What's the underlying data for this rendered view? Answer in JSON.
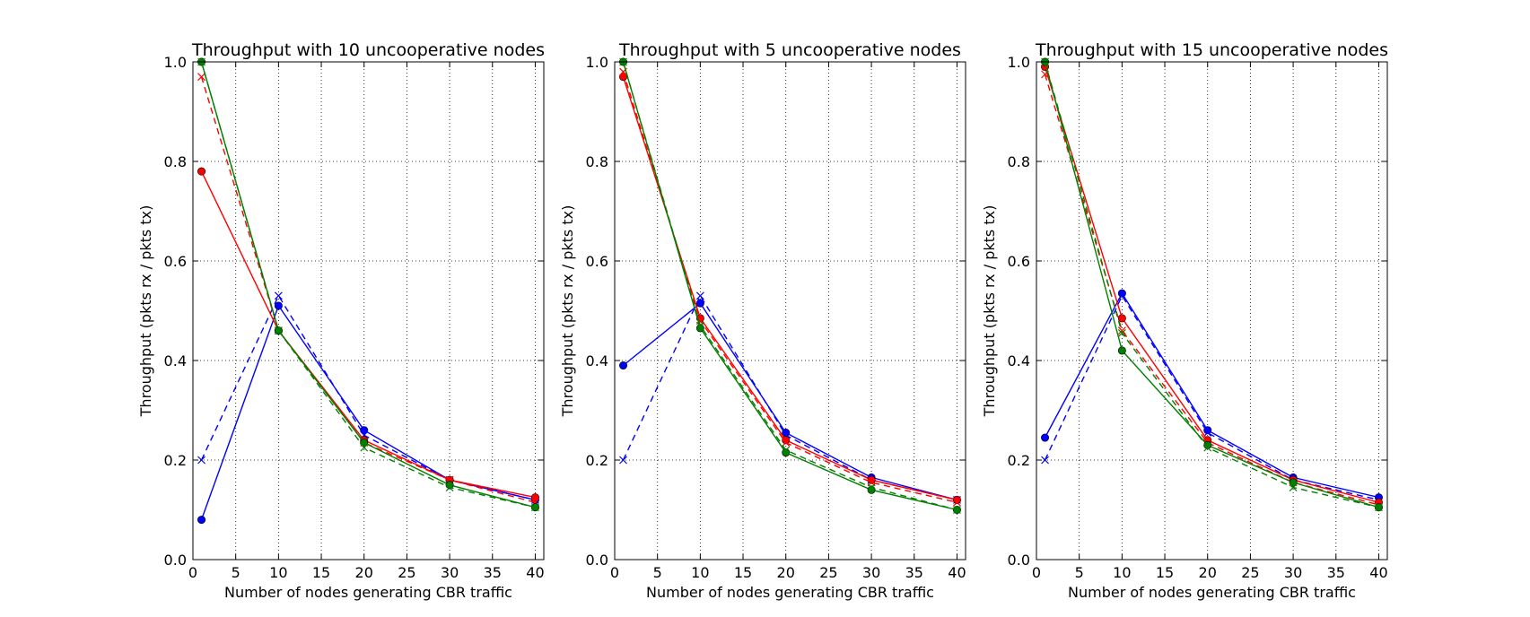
{
  "chart_data": [
    {
      "type": "line",
      "title": "Throughput with 10 uncooperative nodes",
      "xlabel": "Number of nodes generating CBR traffic",
      "ylabel": "Throughput (pkts rx / pkts tx)",
      "xlim": [
        0,
        41
      ],
      "ylim": [
        0.0,
        1.0
      ],
      "xticks": [
        0,
        5,
        10,
        15,
        20,
        25,
        30,
        35,
        40
      ],
      "yticks": [
        0.0,
        0.2,
        0.4,
        0.6,
        0.8,
        1.0
      ],
      "xtick_labels": [
        "0",
        "5",
        "10",
        "15",
        "20",
        "25",
        "30",
        "35",
        "40"
      ],
      "ytick_labels": [
        "0.0",
        "0.2",
        "0.4",
        "0.6",
        "0.8",
        "1.0"
      ],
      "grid": true,
      "x": [
        1,
        10,
        20,
        30,
        40
      ],
      "series": [
        {
          "color": "#0000ff",
          "linestyle": "solid",
          "marker": "circle",
          "values": [
            0.08,
            0.51,
            0.26,
            0.16,
            0.12
          ]
        },
        {
          "color": "#0000ff",
          "linestyle": "dashed",
          "marker": "x",
          "values": [
            0.2,
            0.53,
            0.25,
            0.16,
            0.12
          ]
        },
        {
          "color": "#ff0000",
          "linestyle": "solid",
          "marker": "circle",
          "values": [
            0.78,
            0.46,
            0.24,
            0.16,
            0.125
          ]
        },
        {
          "color": "#ff0000",
          "linestyle": "dashed",
          "marker": "x",
          "values": [
            0.97,
            0.46,
            0.235,
            0.16,
            0.115
          ]
        },
        {
          "color": "#008000",
          "linestyle": "solid",
          "marker": "circle",
          "values": [
            1.0,
            0.46,
            0.235,
            0.15,
            0.105
          ]
        },
        {
          "color": "#008000",
          "linestyle": "dashed",
          "marker": "x",
          "values": [
            1.0,
            0.46,
            0.225,
            0.145,
            0.105
          ]
        }
      ]
    },
    {
      "type": "line",
      "title": "Throughput with 5 uncooperative nodes",
      "xlabel": "Number of nodes generating CBR traffic",
      "ylabel": "Throughput (pkts rx / pkts tx)",
      "xlim": [
        0,
        41
      ],
      "ylim": [
        0.0,
        1.0
      ],
      "xticks": [
        0,
        5,
        10,
        15,
        20,
        25,
        30,
        35,
        40
      ],
      "yticks": [
        0.0,
        0.2,
        0.4,
        0.6,
        0.8,
        1.0
      ],
      "xtick_labels": [
        "0",
        "5",
        "10",
        "15",
        "20",
        "25",
        "30",
        "35",
        "40"
      ],
      "ytick_labels": [
        "0.0",
        "0.2",
        "0.4",
        "0.6",
        "0.8",
        "1.0"
      ],
      "grid": true,
      "x": [
        1,
        10,
        20,
        30,
        40
      ],
      "series": [
        {
          "color": "#0000ff",
          "linestyle": "solid",
          "marker": "circle",
          "values": [
            0.39,
            0.515,
            0.255,
            0.165,
            0.12
          ]
        },
        {
          "color": "#0000ff",
          "linestyle": "dashed",
          "marker": "x",
          "values": [
            0.2,
            0.53,
            0.25,
            0.16,
            0.12
          ]
        },
        {
          "color": "#ff0000",
          "linestyle": "solid",
          "marker": "circle",
          "values": [
            0.97,
            0.485,
            0.24,
            0.16,
            0.12
          ]
        },
        {
          "color": "#ff0000",
          "linestyle": "dashed",
          "marker": "x",
          "values": [
            0.98,
            0.48,
            0.235,
            0.155,
            0.115
          ]
        },
        {
          "color": "#008000",
          "linestyle": "solid",
          "marker": "circle",
          "values": [
            1.0,
            0.465,
            0.215,
            0.14,
            0.1
          ]
        },
        {
          "color": "#008000",
          "linestyle": "dashed",
          "marker": "x",
          "values": [
            1.0,
            0.47,
            0.22,
            0.145,
            0.1
          ]
        }
      ]
    },
    {
      "type": "line",
      "title": "Throughput with 15 uncooperative nodes",
      "xlabel": "Number of nodes generating CBR traffic",
      "ylabel": "Throughput (pkts rx / pkts tx)",
      "xlim": [
        0,
        41
      ],
      "ylim": [
        0.0,
        1.0
      ],
      "xticks": [
        0,
        5,
        10,
        15,
        20,
        25,
        30,
        35,
        40
      ],
      "yticks": [
        0.0,
        0.2,
        0.4,
        0.6,
        0.8,
        1.0
      ],
      "xtick_labels": [
        "0",
        "5",
        "10",
        "15",
        "20",
        "25",
        "30",
        "35",
        "40"
      ],
      "ytick_labels": [
        "0.0",
        "0.2",
        "0.4",
        "0.6",
        "0.8",
        "1.0"
      ],
      "grid": true,
      "x": [
        1,
        10,
        20,
        30,
        40
      ],
      "series": [
        {
          "color": "#0000ff",
          "linestyle": "solid",
          "marker": "circle",
          "values": [
            0.245,
            0.535,
            0.26,
            0.165,
            0.125
          ]
        },
        {
          "color": "#0000ff",
          "linestyle": "dashed",
          "marker": "x",
          "values": [
            0.2,
            0.53,
            0.255,
            0.16,
            0.12
          ]
        },
        {
          "color": "#ff0000",
          "linestyle": "solid",
          "marker": "circle",
          "values": [
            0.99,
            0.485,
            0.24,
            0.16,
            0.115
          ]
        },
        {
          "color": "#ff0000",
          "linestyle": "dashed",
          "marker": "x",
          "values": [
            0.975,
            0.46,
            0.235,
            0.155,
            0.11
          ]
        },
        {
          "color": "#008000",
          "linestyle": "solid",
          "marker": "circle",
          "values": [
            1.0,
            0.42,
            0.23,
            0.155,
            0.105
          ]
        },
        {
          "color": "#008000",
          "linestyle": "dashed",
          "marker": "x",
          "values": [
            1.0,
            0.455,
            0.225,
            0.145,
            0.105
          ]
        }
      ]
    }
  ]
}
